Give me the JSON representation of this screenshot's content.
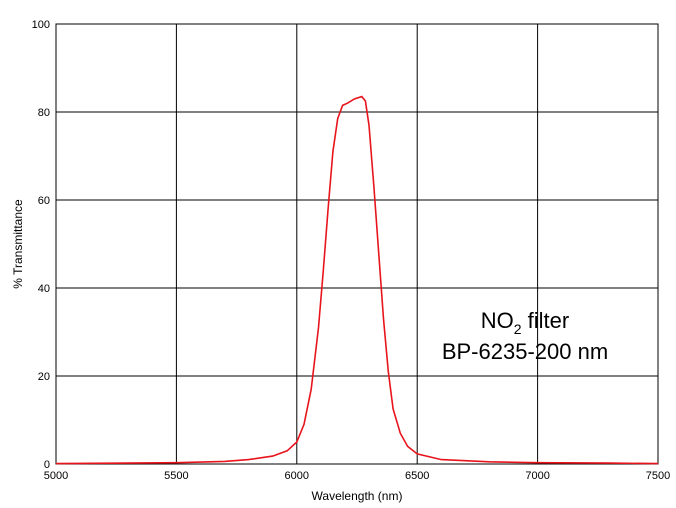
{
  "chart_data": {
    "type": "line",
    "title": "",
    "xlabel": "Wavelength (nm)",
    "ylabel": "% Transmittance",
    "xlim": [
      5000,
      7500
    ],
    "ylim": [
      0,
      100
    ],
    "xticks": [
      5000,
      5500,
      6000,
      6500,
      7000,
      7500
    ],
    "yticks": [
      0,
      20,
      40,
      60,
      80,
      100
    ],
    "grid": true,
    "series": [
      {
        "color": "#e8141c",
        "x": [
          5000,
          5300,
          5500,
          5700,
          5800,
          5900,
          5960,
          6000,
          6030,
          6060,
          6090,
          6110,
          6130,
          6150,
          6170,
          6190,
          6210,
          6240,
          6270,
          6285,
          6300,
          6320,
          6340,
          6360,
          6380,
          6400,
          6430,
          6460,
          6500,
          6600,
          6800,
          7000,
          7300,
          7500
        ],
        "y": [
          0.1,
          0.2,
          0.3,
          0.6,
          1.0,
          1.8,
          3.0,
          5.0,
          9.0,
          17.0,
          31.0,
          44.0,
          58.0,
          71.0,
          78.5,
          81.5,
          82.0,
          83.0,
          83.5,
          82.5,
          77.0,
          63.0,
          48.0,
          33.0,
          21.0,
          12.5,
          7.0,
          4.0,
          2.3,
          1.0,
          0.5,
          0.3,
          0.2,
          0.1
        ]
      }
    ],
    "annotation": {
      "formula_main": "NO",
      "formula_sub": "2",
      "line1_suffix": " filter",
      "line2": "BP-6235-200 nm"
    }
  }
}
